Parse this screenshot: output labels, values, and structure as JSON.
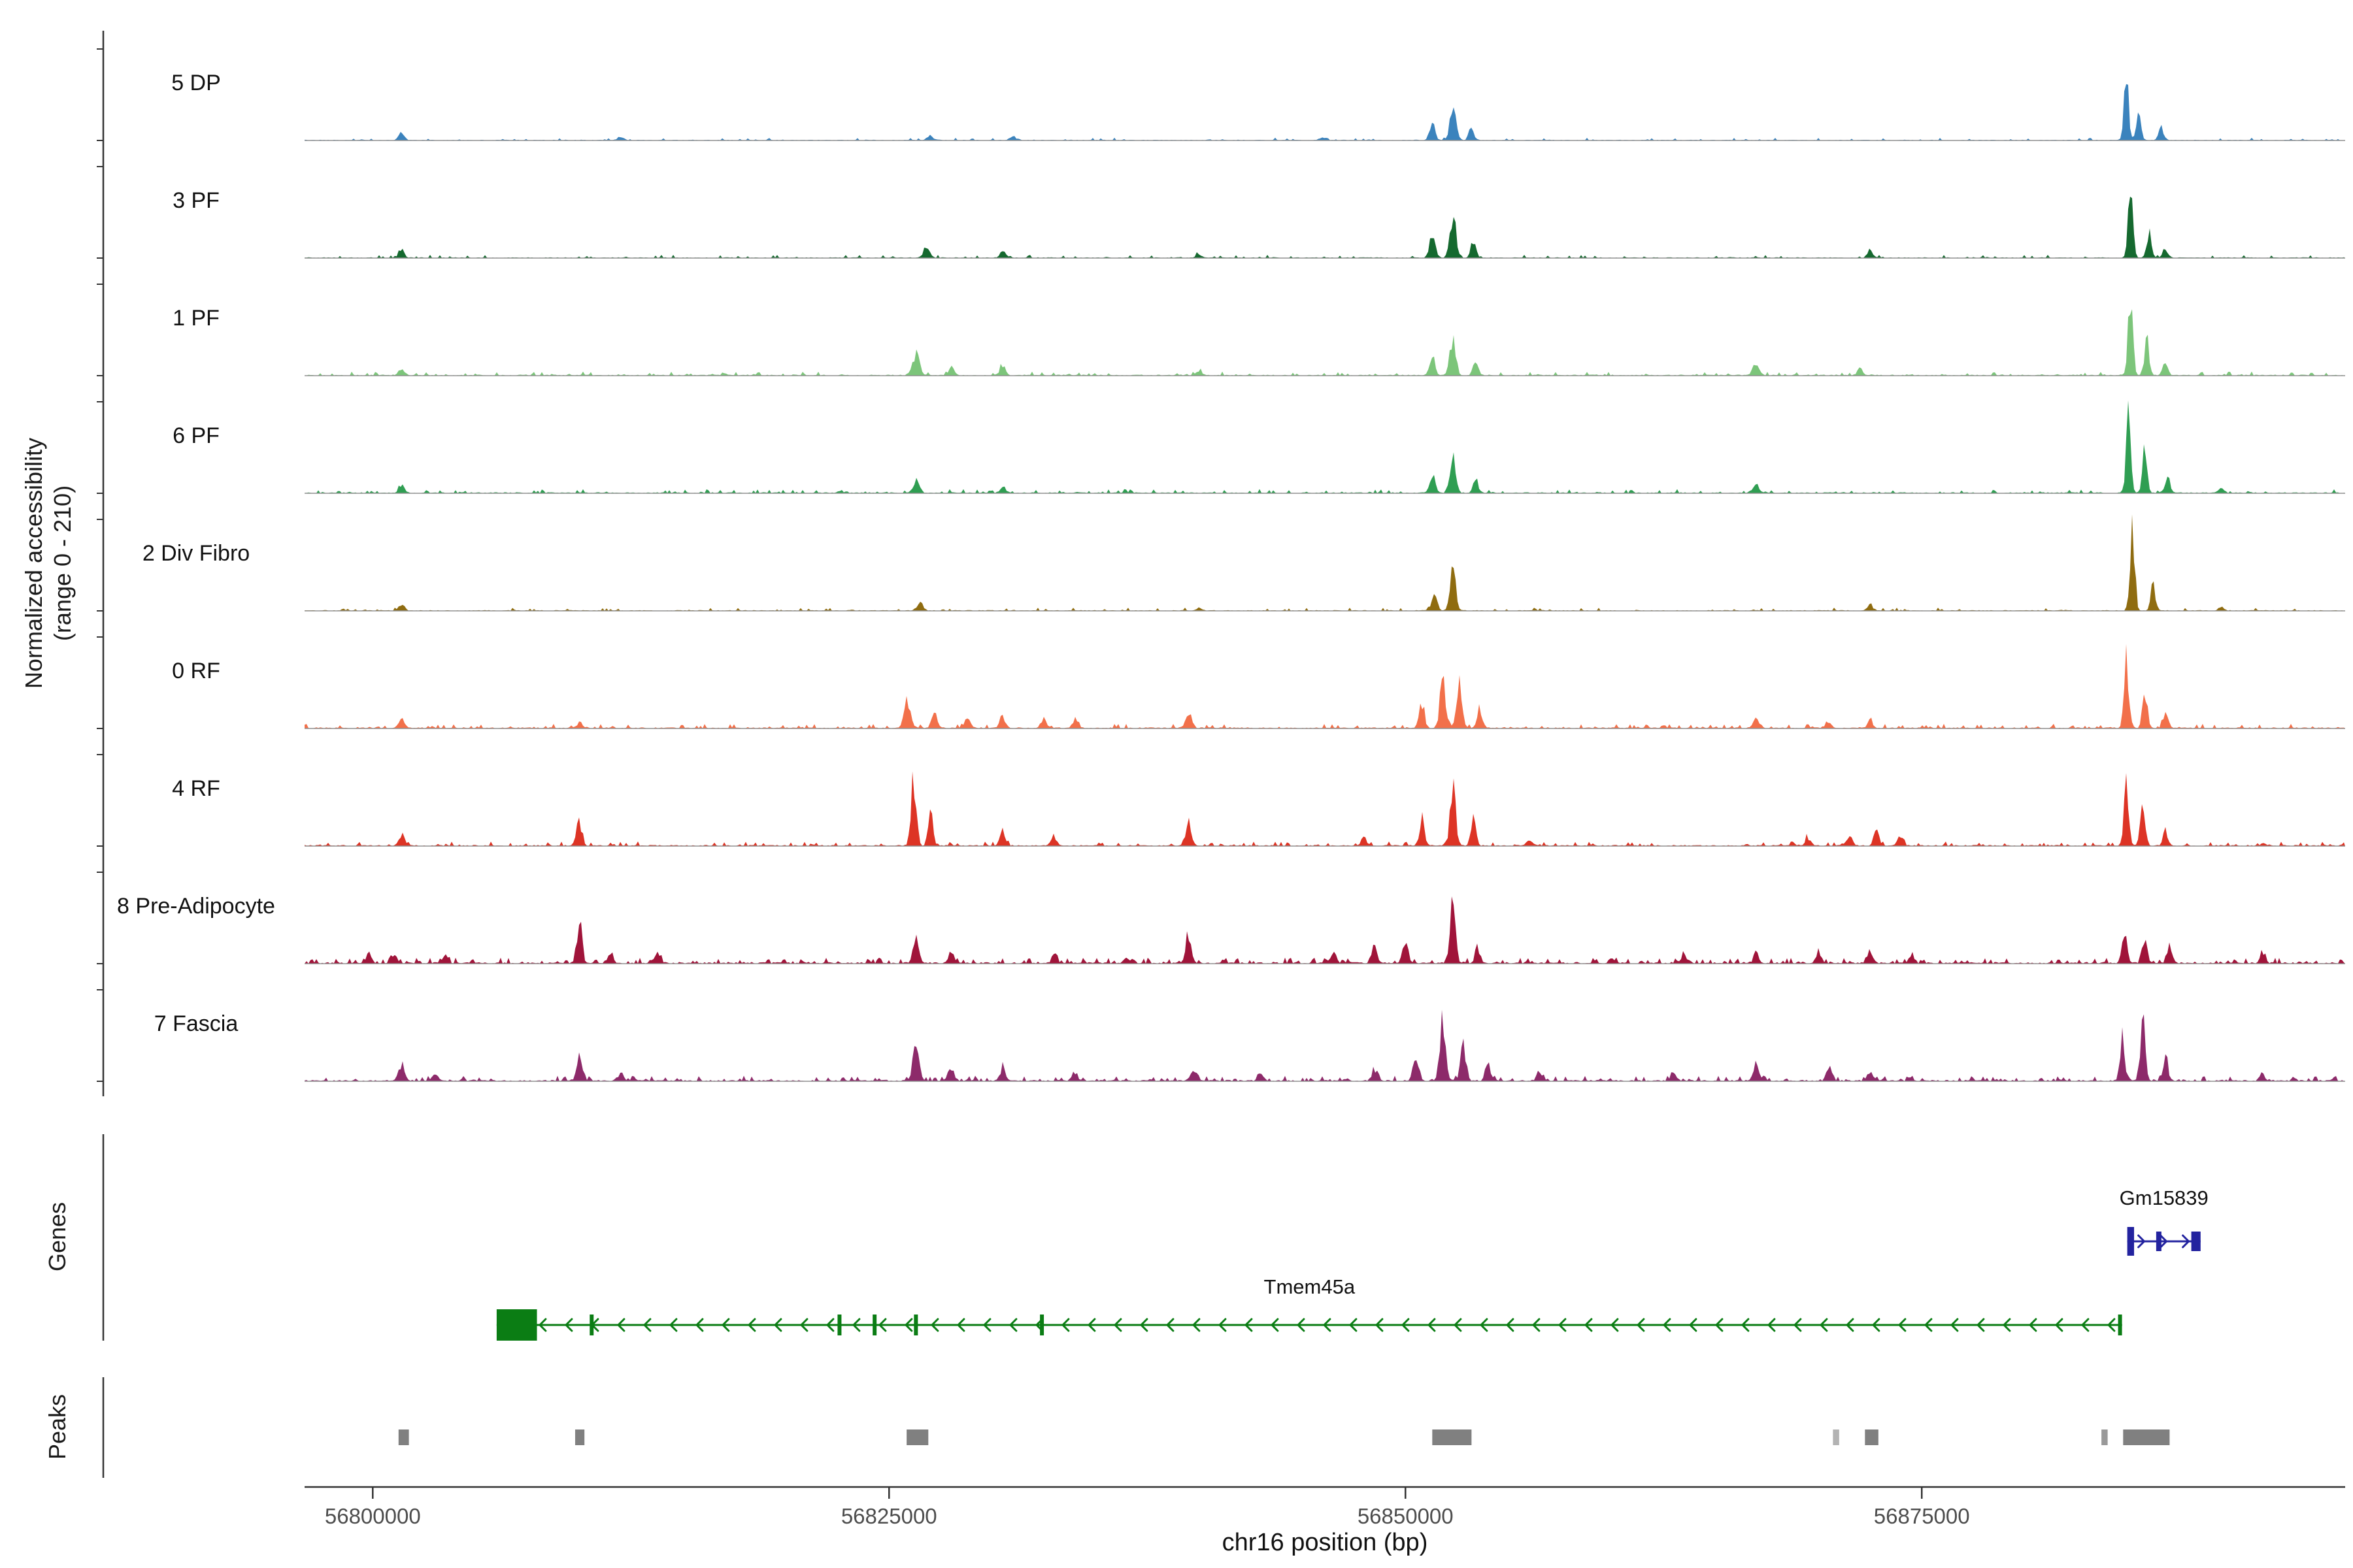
{
  "figure": {
    "y_axis_label_line1": "Normalized accessibility",
    "y_axis_label_line2": "(range 0 - 210)",
    "genes_label": "Genes",
    "peaks_label": "Peaks",
    "x_axis_label": "chr16 position (bp)"
  },
  "chart_data": {
    "type": "area",
    "chromosome": "chr16",
    "y_range": [
      0,
      210
    ],
    "x_range_bp": [
      56796700,
      56895500
    ],
    "x_ticks_bp": [
      56800000,
      56825000,
      56850000,
      56875000
    ],
    "x_tick_labels": [
      "56800000",
      "56825000",
      "56850000",
      "56875000"
    ],
    "tracks": [
      {
        "label": "5 DP",
        "color": "#3b83bd",
        "seed": 3,
        "noise": 0.03,
        "noise_density": 0.12,
        "peaks": [
          [
            56801400,
            0.1,
            300
          ],
          [
            56812000,
            0.05,
            300
          ],
          [
            56827000,
            0.06,
            350
          ],
          [
            56831000,
            0.06,
            300
          ],
          [
            56846000,
            0.04,
            300
          ],
          [
            56851300,
            0.2,
            300
          ],
          [
            56852300,
            0.38,
            350
          ],
          [
            56853200,
            0.15,
            300
          ],
          [
            56884900,
            0.8,
            240
          ],
          [
            56885500,
            0.35,
            250
          ],
          [
            56886600,
            0.15,
            300
          ]
        ]
      },
      {
        "label": "3 PF",
        "color": "#15692f",
        "seed": 7,
        "noise": 0.035,
        "noise_density": 0.12,
        "peaks": [
          [
            56801400,
            0.1,
            300
          ],
          [
            56826800,
            0.12,
            350
          ],
          [
            56830500,
            0.1,
            300
          ],
          [
            56840000,
            0.05,
            300
          ],
          [
            56851300,
            0.3,
            300
          ],
          [
            56852300,
            0.55,
            330
          ],
          [
            56853300,
            0.2,
            280
          ],
          [
            56872500,
            0.1,
            300
          ],
          [
            56885100,
            0.97,
            250
          ],
          [
            56886000,
            0.3,
            250
          ],
          [
            56886800,
            0.12,
            280
          ]
        ]
      },
      {
        "label": "1 PF",
        "color": "#7cc57a",
        "seed": 13,
        "noise": 0.045,
        "noise_density": 0.18,
        "peaks": [
          [
            56801400,
            0.1,
            300
          ],
          [
            56826300,
            0.25,
            400
          ],
          [
            56828000,
            0.1,
            300
          ],
          [
            56830500,
            0.12,
            320
          ],
          [
            56840000,
            0.06,
            300
          ],
          [
            56851300,
            0.25,
            300
          ],
          [
            56852300,
            0.42,
            330
          ],
          [
            56853400,
            0.18,
            280
          ],
          [
            56867000,
            0.15,
            350
          ],
          [
            56872000,
            0.08,
            300
          ],
          [
            56885100,
            0.95,
            260
          ],
          [
            56885900,
            0.45,
            240
          ],
          [
            56886800,
            0.15,
            280
          ]
        ]
      },
      {
        "label": "6 PF",
        "color": "#2f9e52",
        "seed": 21,
        "noise": 0.045,
        "noise_density": 0.18,
        "peaks": [
          [
            56801400,
            0.1,
            300
          ],
          [
            56826300,
            0.14,
            380
          ],
          [
            56830500,
            0.08,
            300
          ],
          [
            56851300,
            0.25,
            300
          ],
          [
            56852300,
            0.4,
            330
          ],
          [
            56853400,
            0.15,
            280
          ],
          [
            56867000,
            0.1,
            320
          ],
          [
            56885000,
            0.9,
            260
          ],
          [
            56885800,
            0.5,
            240
          ],
          [
            56886900,
            0.18,
            280
          ],
          [
            56889500,
            0.06,
            300
          ]
        ]
      },
      {
        "label": "2 Div Fibro",
        "color": "#8f6c10",
        "seed": 29,
        "noise": 0.035,
        "noise_density": 0.12,
        "peaks": [
          [
            56801400,
            0.08,
            300
          ],
          [
            56826500,
            0.1,
            350
          ],
          [
            56840000,
            0.04,
            300
          ],
          [
            56851400,
            0.25,
            300
          ],
          [
            56852300,
            0.5,
            330
          ],
          [
            56872500,
            0.08,
            300
          ],
          [
            56885200,
            1.0,
            250
          ],
          [
            56886200,
            0.3,
            240
          ],
          [
            56889500,
            0.05,
            280
          ]
        ]
      },
      {
        "label": "0 RF",
        "color": "#f2704a",
        "seed": 37,
        "noise": 0.05,
        "noise_density": 0.2,
        "peaks": [
          [
            56801400,
            0.13,
            320
          ],
          [
            56810000,
            0.07,
            300
          ],
          [
            56825900,
            0.33,
            380
          ],
          [
            56827200,
            0.18,
            320
          ],
          [
            56828800,
            0.12,
            320
          ],
          [
            56830500,
            0.13,
            320
          ],
          [
            56832500,
            0.12,
            320
          ],
          [
            56834000,
            0.1,
            300
          ],
          [
            56839500,
            0.2,
            340
          ],
          [
            56850800,
            0.3,
            300
          ],
          [
            56851800,
            0.55,
            320
          ],
          [
            56852600,
            0.62,
            320
          ],
          [
            56853600,
            0.25,
            300
          ],
          [
            56867000,
            0.13,
            330
          ],
          [
            56870500,
            0.08,
            300
          ],
          [
            56872500,
            0.1,
            300
          ],
          [
            56884900,
            0.85,
            260
          ],
          [
            56885800,
            0.5,
            250
          ],
          [
            56886800,
            0.2,
            280
          ]
        ]
      },
      {
        "label": "4 RF",
        "color": "#dd3425",
        "seed": 43,
        "noise": 0.05,
        "noise_density": 0.22,
        "peaks": [
          [
            56801400,
            0.13,
            320
          ],
          [
            56810000,
            0.3,
            300
          ],
          [
            56826200,
            0.85,
            280
          ],
          [
            56827000,
            0.45,
            260
          ],
          [
            56830500,
            0.15,
            320
          ],
          [
            56833000,
            0.12,
            300
          ],
          [
            56839500,
            0.3,
            320
          ],
          [
            56848000,
            0.1,
            300
          ],
          [
            56850800,
            0.32,
            300
          ],
          [
            56852300,
            0.85,
            300
          ],
          [
            56853300,
            0.3,
            280
          ],
          [
            56856000,
            0.08,
            300
          ],
          [
            56869500,
            0.1,
            300
          ],
          [
            56871500,
            0.15,
            300
          ],
          [
            56872800,
            0.2,
            300
          ],
          [
            56874000,
            0.12,
            300
          ],
          [
            56884900,
            0.75,
            250
          ],
          [
            56885700,
            0.6,
            240
          ],
          [
            56886800,
            0.18,
            280
          ]
        ]
      },
      {
        "label": "8 Pre-Adipocyte",
        "color": "#a0143a",
        "seed": 55,
        "noise": 0.065,
        "noise_density": 0.3,
        "peaks": [
          [
            56799800,
            0.1,
            300
          ],
          [
            56801000,
            0.12,
            300
          ],
          [
            56803500,
            0.1,
            300
          ],
          [
            56810000,
            0.55,
            280
          ],
          [
            56811500,
            0.12,
            280
          ],
          [
            56813800,
            0.14,
            300
          ],
          [
            56826300,
            0.35,
            320
          ],
          [
            56828000,
            0.15,
            300
          ],
          [
            56833000,
            0.12,
            300
          ],
          [
            56836500,
            0.08,
            300
          ],
          [
            56839500,
            0.35,
            320
          ],
          [
            56846500,
            0.15,
            300
          ],
          [
            56848500,
            0.22,
            300
          ],
          [
            56850000,
            0.25,
            300
          ],
          [
            56852300,
            0.9,
            280
          ],
          [
            56853500,
            0.2,
            280
          ],
          [
            56860000,
            0.06,
            300
          ],
          [
            56863500,
            0.1,
            300
          ],
          [
            56867000,
            0.1,
            300
          ],
          [
            56870000,
            0.14,
            300
          ],
          [
            56872500,
            0.15,
            300
          ],
          [
            56874500,
            0.1,
            300
          ],
          [
            56884800,
            0.45,
            260
          ],
          [
            56885800,
            0.3,
            250
          ],
          [
            56887000,
            0.28,
            280
          ],
          [
            56891500,
            0.1,
            300
          ]
        ]
      },
      {
        "label": "7 Fascia",
        "color": "#8d2a6a",
        "seed": 61,
        "noise": 0.06,
        "noise_density": 0.28,
        "peaks": [
          [
            56801400,
            0.15,
            320
          ],
          [
            56803000,
            0.08,
            300
          ],
          [
            56810000,
            0.3,
            300
          ],
          [
            56812000,
            0.1,
            300
          ],
          [
            56826300,
            0.4,
            340
          ],
          [
            56828000,
            0.18,
            320
          ],
          [
            56830500,
            0.15,
            320
          ],
          [
            56834000,
            0.12,
            300
          ],
          [
            56839800,
            0.12,
            300
          ],
          [
            56843000,
            0.08,
            300
          ],
          [
            56848500,
            0.15,
            300
          ],
          [
            56850500,
            0.3,
            300
          ],
          [
            56851800,
            0.65,
            320
          ],
          [
            56852800,
            0.45,
            300
          ],
          [
            56854000,
            0.2,
            300
          ],
          [
            56856500,
            0.12,
            300
          ],
          [
            56863000,
            0.08,
            300
          ],
          [
            56867000,
            0.2,
            330
          ],
          [
            56870500,
            0.16,
            300
          ],
          [
            56872500,
            0.12,
            300
          ],
          [
            56884700,
            0.5,
            260
          ],
          [
            56885700,
            0.82,
            260
          ],
          [
            56886800,
            0.3,
            280
          ],
          [
            56891500,
            0.08,
            300
          ]
        ]
      }
    ],
    "genes": [
      {
        "name": "Gm15839",
        "strand": "+",
        "color": "#23239f",
        "start_bp": 56884950,
        "end_bp": 56888500,
        "exon_boxes_bp": [
          [
            56884950,
            56885280
          ],
          [
            56886350,
            56886600
          ],
          [
            56888050,
            56888500
          ]
        ]
      },
      {
        "name": "Tmem45a",
        "strand": "-",
        "color": "#0b7d14",
        "start_bp": 56806000,
        "end_bp": 56884700,
        "utr_box_bp": [
          56806000,
          56807950
        ],
        "exon_ticks_bp": [
          56810600,
          56822600,
          56824300,
          56826300,
          56832400,
          56884600
        ]
      }
    ],
    "peak_regions": [
      {
        "start_bp": 56801250,
        "end_bp": 56801750,
        "color": "#808080"
      },
      {
        "start_bp": 56809800,
        "end_bp": 56810250,
        "color": "#808080"
      },
      {
        "start_bp": 56825850,
        "end_bp": 56826900,
        "color": "#808080"
      },
      {
        "start_bp": 56851300,
        "end_bp": 56853200,
        "color": "#808080"
      },
      {
        "start_bp": 56870700,
        "end_bp": 56871000,
        "color": "#b3b3b3"
      },
      {
        "start_bp": 56872250,
        "end_bp": 56872900,
        "color": "#808080"
      },
      {
        "start_bp": 56883700,
        "end_bp": 56884000,
        "color": "#999999"
      },
      {
        "start_bp": 56884750,
        "end_bp": 56887000,
        "color": "#808080"
      }
    ]
  }
}
